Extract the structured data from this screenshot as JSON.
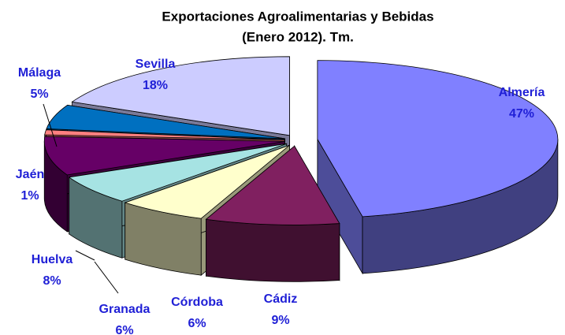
{
  "chart_data": {
    "type": "pie3d",
    "title": [
      "Exportaciones Agroalimentarias y Bebidas",
      "(Enero 2012). Tm."
    ],
    "categories": [
      "Almería",
      "Cádiz",
      "Córdoba",
      "Granada",
      "Huelva",
      "Jaén",
      "Málaga",
      "Sevilla"
    ],
    "values": [
      47,
      9,
      6,
      6,
      8,
      1,
      5,
      18
    ],
    "value_labels": [
      "47%",
      "9%",
      "6%",
      "6%",
      "8%",
      "1%",
      "5%",
      "18%"
    ],
    "colors": [
      "#8080ff",
      "#802060",
      "#ffffcc",
      "#a6e3e3",
      "#660066",
      "#ff8080",
      "#0070c0",
      "#ccccff"
    ]
  }
}
